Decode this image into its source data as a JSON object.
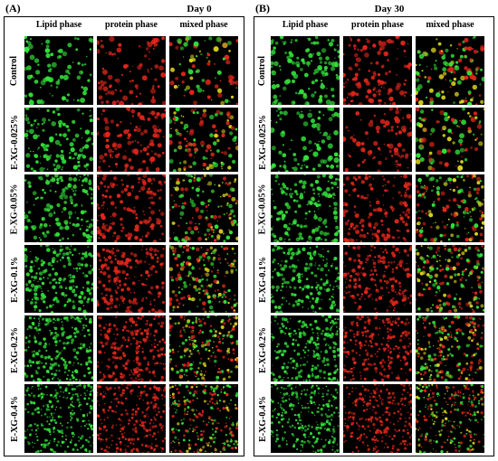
{
  "figure": {
    "panels": [
      {
        "letter": "(A)",
        "title": "Day 0",
        "columns": [
          "Lipid phase",
          "protein phase",
          "mixed phase"
        ],
        "rows": [
          "Control",
          "E-XG-0.025%",
          "E-XG-0.05%",
          "E-XG-0.1%",
          "E-XG-0.2%",
          "E-XG-0.4%"
        ]
      },
      {
        "letter": "(B)",
        "title": "Day 30",
        "columns": [
          "Lipid phase",
          "protein phase",
          "mixed phase"
        ],
        "rows": [
          "Control",
          "E-XG-0.025%",
          "E-XG-0.05%",
          "E-XG-0.1%",
          "E-XG-0.2%",
          "E-XG-0.4%"
        ]
      }
    ],
    "colors": {
      "lipid": "#33e23a",
      "protein": "#e2261c",
      "mixed_yellow": "#d8d21c",
      "background": "#000000"
    }
  }
}
